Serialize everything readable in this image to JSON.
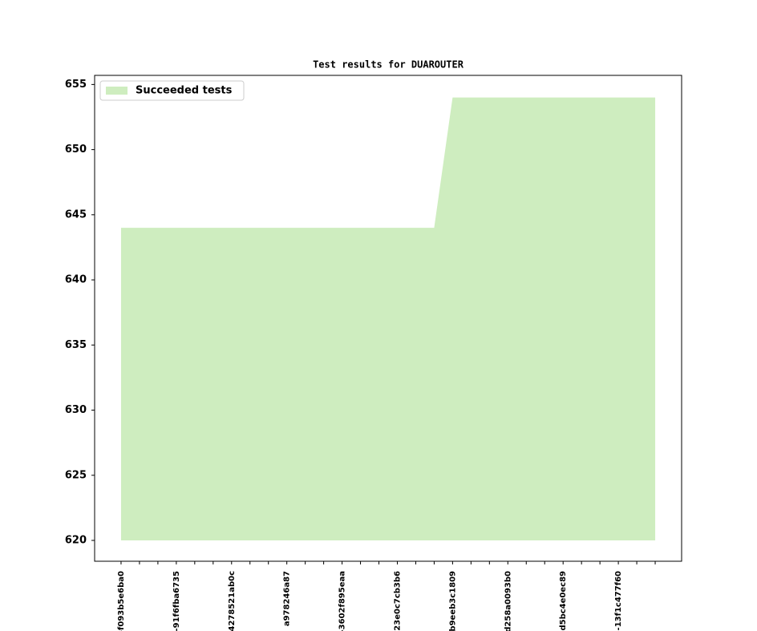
{
  "chart_data": {
    "type": "area",
    "title": "Test results for DUAROUTER",
    "categories": [
      "-f093b5e6ba0",
      null,
      null,
      "-91f6fba6735",
      null,
      null,
      "4278521ab0c",
      null,
      null,
      "a978246a87",
      null,
      null,
      "-3602f895eaa",
      null,
      null,
      "23e0c7cb3b6",
      null,
      null,
      "b9eeb3c1809",
      null,
      null,
      "d258a0093b0",
      null,
      null,
      "-d5bc4e0ec89",
      null,
      null,
      "-13f1c477f60",
      null,
      null
    ],
    "series": [
      {
        "name": "Succeeded tests",
        "color": "#ceedbf",
        "values": [
          644,
          644,
          644,
          644,
          644,
          644,
          644,
          644,
          644,
          644,
          644,
          644,
          644,
          644,
          644,
          644,
          644,
          644,
          654,
          654,
          654,
          654,
          654,
          654,
          654,
          654,
          654,
          654,
          654,
          654
        ]
      }
    ],
    "ylim": [
      618.4,
      655.7
    ],
    "yticks": [
      620,
      625,
      630,
      635,
      640,
      645,
      650,
      655
    ],
    "legend": "upper left",
    "grid": false
  }
}
